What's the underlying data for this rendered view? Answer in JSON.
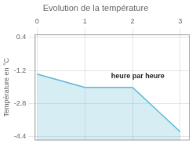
{
  "chart_data": {
    "type": "area",
    "title": "Evolution de la température",
    "y_label": "Température en °C",
    "annotations": [
      {
        "text": "heure par heure",
        "x": 1.55,
        "y": -1.3
      }
    ],
    "x": [
      0,
      1,
      2,
      3
    ],
    "series": [
      {
        "name": "Température",
        "color": "#5bb8d4",
        "values": [
          -1.38,
          -2.02,
          -2.02,
          -4.18
        ]
      }
    ],
    "xlim": [
      -0.05,
      3.2
    ],
    "xticks": [
      0,
      1,
      2,
      3
    ],
    "ylim": [
      -4.6,
      0.55
    ],
    "yticks": [
      0.4,
      -1.2,
      -2.8,
      -4.4
    ],
    "grid": true
  }
}
